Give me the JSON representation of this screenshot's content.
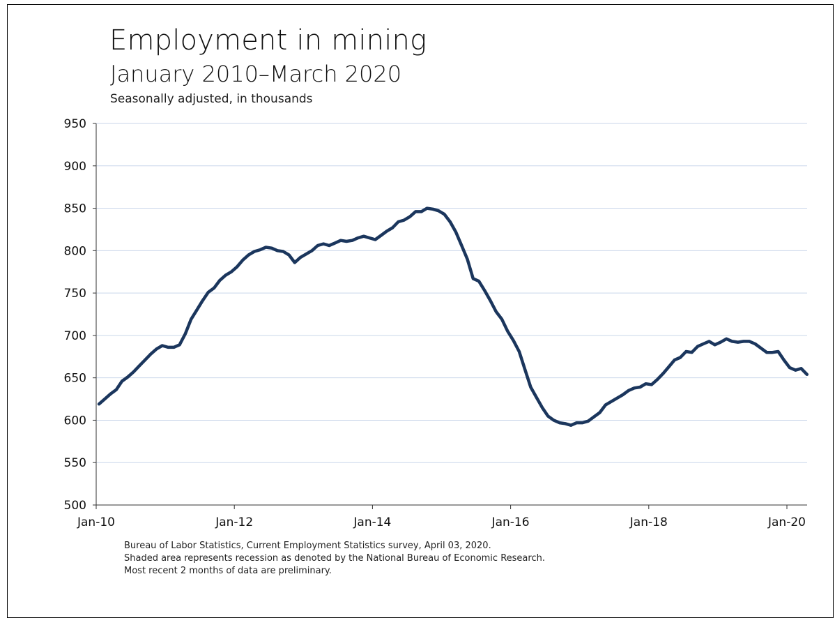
{
  "title": "Employment in mining",
  "subtitle": "January 2010–March 2020",
  "units": "Seasonally adjusted, in thousands",
  "notes": [
    "Bureau of Labor Statistics, Current Employment Statistics survey, April 03, 2020.",
    "Shaded area represents recession as denoted by the National Bureau of Economic Research.",
    "Most recent 2 months of data are preliminary."
  ],
  "colors": {
    "line": "#1b365d",
    "grid": "#c9d6ea",
    "axis": "#333333"
  },
  "chart_data": {
    "type": "line",
    "title": "Employment in mining",
    "subtitle": "January 2010–March 2020",
    "ylabel": "Seasonally adjusted, in thousands",
    "ylim": [
      500,
      950
    ],
    "yticks": [
      500,
      550,
      600,
      650,
      700,
      750,
      800,
      850,
      900,
      950
    ],
    "xticks": [
      "Jan-10",
      "Jan-12",
      "Jan-14",
      "Jan-16",
      "Jan-18",
      "Jan-20"
    ],
    "grid": true,
    "x_start": "Jan-10",
    "x_end": "Mar-20",
    "series": [
      {
        "values": [
          619,
          625,
          631,
          636,
          646,
          651,
          657,
          664,
          671,
          678,
          684,
          688,
          686,
          686,
          689,
          702,
          719,
          730,
          741,
          751,
          756,
          765,
          771,
          775,
          781,
          789,
          795,
          799,
          801,
          804,
          803,
          800,
          799,
          795,
          786,
          792,
          796,
          800,
          806,
          808,
          806,
          809,
          812,
          811,
          812,
          815,
          817,
          815,
          813,
          818,
          823,
          827,
          834,
          836,
          840,
          846,
          846,
          850,
          849,
          847,
          843,
          834,
          822,
          806,
          790,
          767,
          764,
          753,
          741,
          728,
          719,
          705,
          694,
          681,
          660,
          639,
          627,
          615,
          605,
          600,
          597,
          596,
          594,
          597,
          597,
          599,
          604,
          609,
          618,
          622,
          626,
          630,
          635,
          638,
          639,
          643,
          642,
          648,
          655,
          663,
          671,
          674,
          681,
          680,
          687,
          690,
          693,
          689,
          692,
          696,
          693,
          692,
          693,
          693,
          690,
          685,
          680,
          680,
          681,
          671,
          662,
          659,
          661,
          654
        ]
      }
    ]
  }
}
